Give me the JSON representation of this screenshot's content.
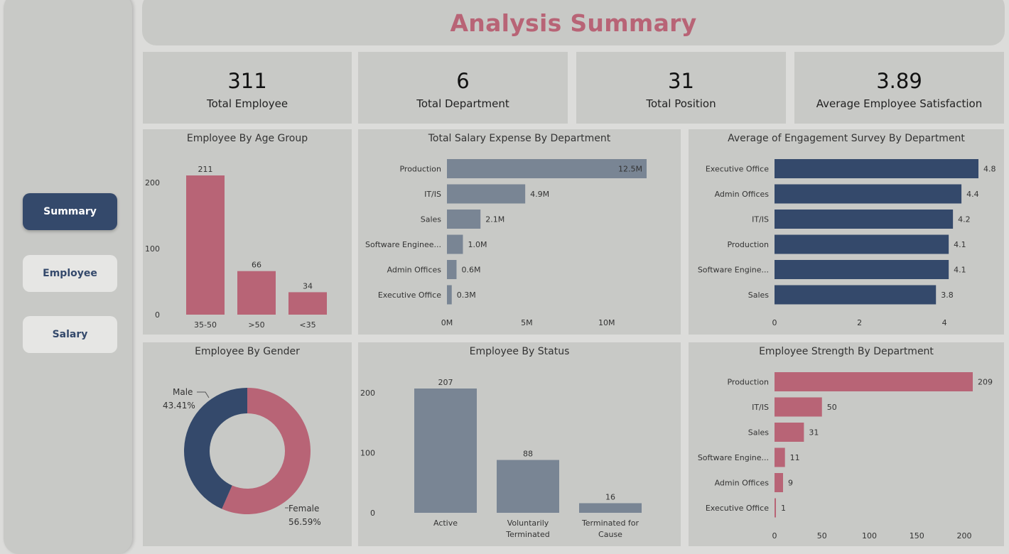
{
  "header": {
    "title": "Analysis Summary"
  },
  "nav": [
    {
      "label": "Summary",
      "active": true
    },
    {
      "label": "Employee",
      "active": false
    },
    {
      "label": "Salary",
      "active": false
    }
  ],
  "kpis": [
    {
      "value": "311",
      "label": "Total Employee"
    },
    {
      "value": "6",
      "label": "Total Department"
    },
    {
      "value": "31",
      "label": "Total Position"
    },
    {
      "value": "3.89",
      "label": "Average Employee Satisfaction"
    }
  ],
  "colors": {
    "rose": "#b86476",
    "slate": "#798594",
    "navy": "#34496b",
    "background": "#c8c9c6"
  },
  "chart_data": [
    {
      "id": "age",
      "type": "bar",
      "title": "Employee By Age Group",
      "categories": [
        "35-50",
        ">50",
        "<35"
      ],
      "values": [
        211,
        66,
        34
      ],
      "value_labels": [
        "211",
        "66",
        "34"
      ],
      "ylim": [
        0,
        211
      ],
      "yticks": [
        0,
        100,
        200
      ],
      "ytick_labels": [
        "0",
        "100",
        "200"
      ],
      "color": "#b86476"
    },
    {
      "id": "salary",
      "type": "bar",
      "orientation": "horizontal",
      "title": "Total Salary Expense By Department",
      "categories": [
        "Production",
        "IT/IS",
        "Sales",
        "Software Enginee...",
        "Admin Offices",
        "Executive Office"
      ],
      "values": [
        12.5,
        4.9,
        2.1,
        1.0,
        0.6,
        0.3
      ],
      "value_labels": [
        "12.5M",
        "4.9M",
        "2.1M",
        "1.0M",
        "0.6M",
        "0.3M"
      ],
      "xlim": [
        0,
        12.5
      ],
      "xticks": [
        0,
        5,
        10
      ],
      "xtick_labels": [
        "0M",
        "5M",
        "10M"
      ],
      "color": "#798594"
    },
    {
      "id": "engagement",
      "type": "bar",
      "orientation": "horizontal",
      "title": "Average of Engagement Survey By Department",
      "categories": [
        "Executive Office",
        "Admin Offices",
        "IT/IS",
        "Production",
        "Software Engine...",
        "Sales"
      ],
      "values": [
        4.8,
        4.4,
        4.2,
        4.1,
        4.1,
        3.8
      ],
      "value_labels": [
        "4.8",
        "4.4",
        "4.2",
        "4.1",
        "4.1",
        "3.8"
      ],
      "xlim": [
        0,
        4.8
      ],
      "xticks": [
        0,
        2,
        4
      ],
      "xtick_labels": [
        "0",
        "2",
        "4"
      ],
      "color": "#34496b"
    },
    {
      "id": "gender",
      "type": "pie",
      "donut": true,
      "title": "Employee By Gender",
      "labels": [
        "Female",
        "Male"
      ],
      "values": [
        56.59,
        43.41
      ],
      "value_labels": [
        "56.59%",
        "43.41%"
      ],
      "colors": [
        "#b86476",
        "#34496b"
      ]
    },
    {
      "id": "status",
      "type": "bar",
      "title": "Employee By Status",
      "categories": [
        "Active",
        "Voluntarily Terminated",
        "Terminated for Cause"
      ],
      "category_lines": [
        [
          "Active"
        ],
        [
          "Voluntarily",
          "Terminated"
        ],
        [
          "Terminated for",
          "Cause"
        ]
      ],
      "values": [
        207,
        88,
        16
      ],
      "value_labels": [
        "207",
        "88",
        "16"
      ],
      "ylim": [
        0,
        207
      ],
      "yticks": [
        0,
        100,
        200
      ],
      "ytick_labels": [
        "0",
        "100",
        "200"
      ],
      "color": "#798594"
    },
    {
      "id": "strength",
      "type": "bar",
      "orientation": "horizontal",
      "title": "Employee Strength By Department",
      "categories": [
        "Production",
        "IT/IS",
        "Sales",
        "Software Engine...",
        "Admin Offices",
        "Executive Office"
      ],
      "values": [
        209,
        50,
        31,
        11,
        9,
        1
      ],
      "value_labels": [
        "209",
        "50",
        "31",
        "11",
        "9",
        "1"
      ],
      "xlim": [
        0,
        209
      ],
      "xticks": [
        0,
        50,
        100,
        150,
        200
      ],
      "xtick_labels": [
        "0",
        "50",
        "100",
        "150",
        "200"
      ],
      "color": "#b86476"
    }
  ]
}
